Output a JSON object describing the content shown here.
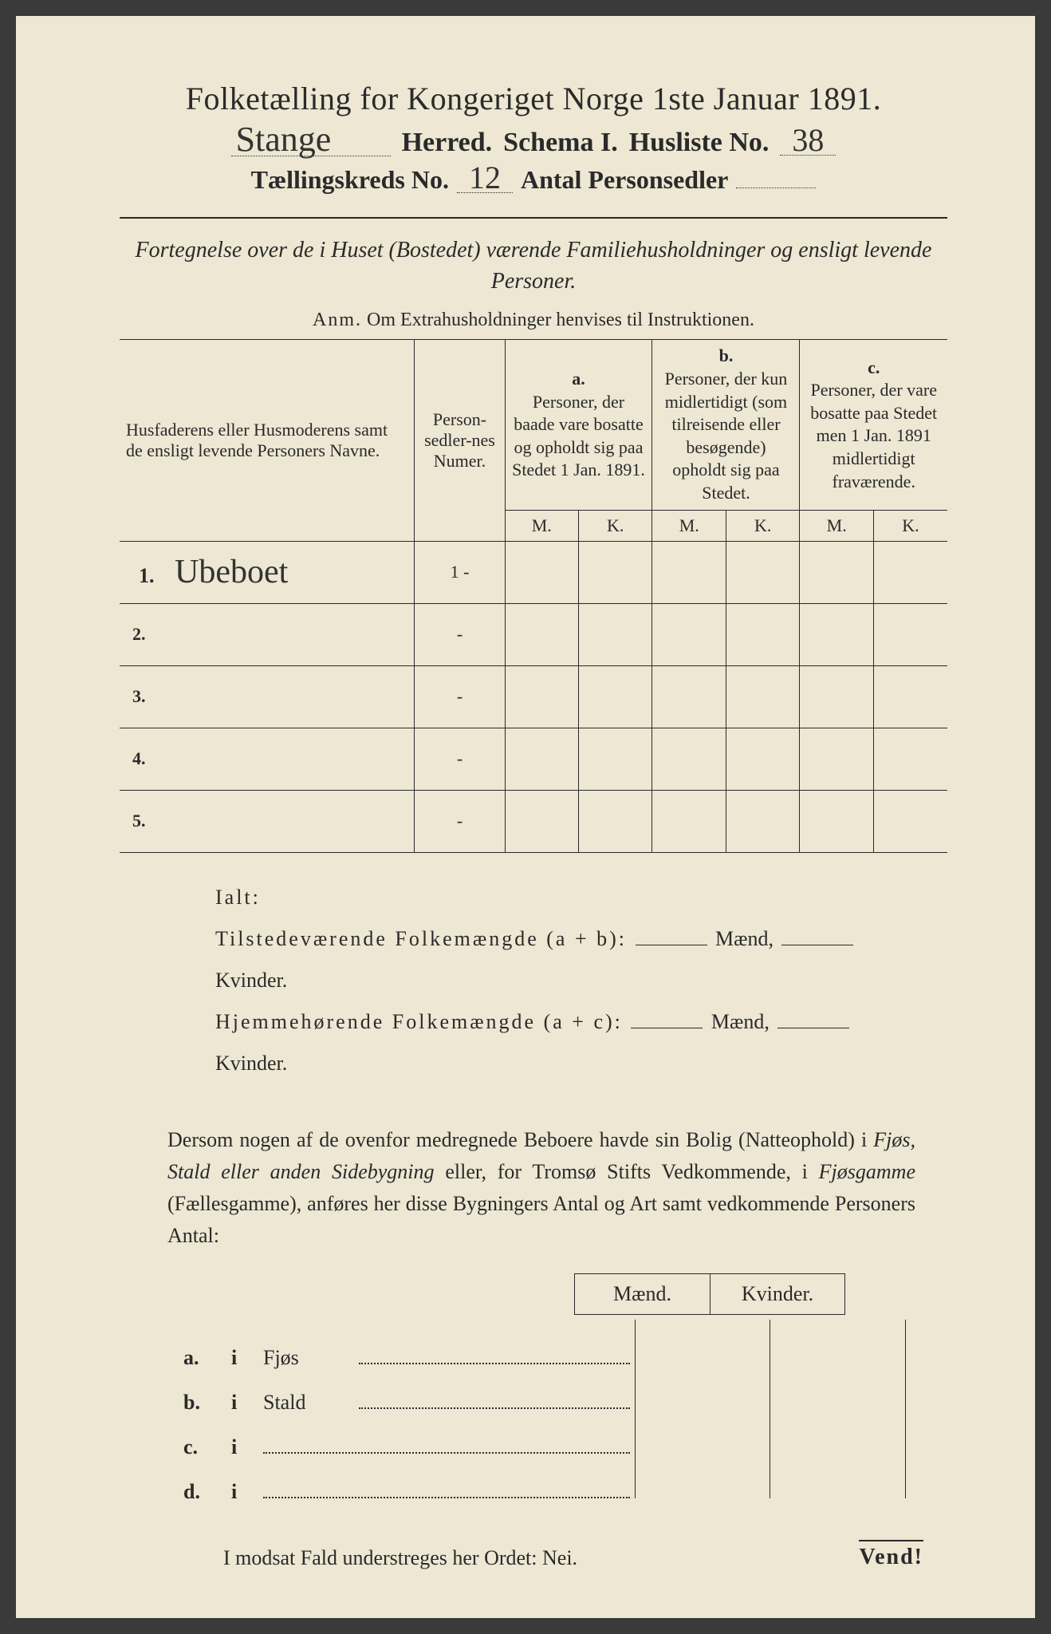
{
  "header": {
    "title": "Folketælling for Kongeriget Norge 1ste Januar 1891.",
    "herred_value": "Stange",
    "herred_label": "Herred.",
    "schema_label": "Schema I.",
    "husliste_label": "Husliste No.",
    "husliste_value": "38",
    "kreds_label": "Tællingskreds No.",
    "kreds_value": "12",
    "antal_label": "Antal Personsedler"
  },
  "subtitle": "Fortegnelse over de i Huset (Bostedet) værende Familiehusholdninger og ensligt levende Personer.",
  "anm_lead": "Anm.",
  "anm_text": "Om Extrahusholdninger henvises til Instruktionen.",
  "table": {
    "col1": "Husfaderens eller Husmoderens samt de ensligt levende Personers Navne.",
    "col2": "Person-sedler-nes Numer.",
    "a_letter": "a.",
    "a_text": "Personer, der baade vare bosatte og opholdt sig paa Stedet 1 Jan. 1891.",
    "b_letter": "b.",
    "b_text": "Personer, der kun midlertidigt (som tilreisende eller besøgende) opholdt sig paa Stedet.",
    "c_letter": "c.",
    "c_text": "Personer, der vare bosatte paa Stedet men 1 Jan. 1891 midlertidigt fraværende.",
    "M": "M.",
    "K": "K.",
    "rows": [
      {
        "n": "1.",
        "name": "Ubeboet",
        "num": "1 -"
      },
      {
        "n": "2.",
        "name": "",
        "num": "-"
      },
      {
        "n": "3.",
        "name": "",
        "num": "-"
      },
      {
        "n": "4.",
        "name": "",
        "num": "-"
      },
      {
        "n": "5.",
        "name": "",
        "num": "-"
      }
    ]
  },
  "ialt": {
    "ialt": "Ialt:",
    "line1a": "Tilstedeværende Folkemængde (a + b):",
    "line2a": "Hjemmehørende Folkemængde (a + c):",
    "maend": "Mænd,",
    "kvinder": "Kvinder."
  },
  "para": {
    "text1": "Dersom nogen af de ovenfor medregnede Beboere havde sin Bolig (Natteophold) i ",
    "it1": "Fjøs, Stald eller anden Sidebygning",
    "text2": " eller, for Tromsø Stifts Vedkommende, i ",
    "it2": "Fjøsgamme",
    "text3": " (Fællesgamme), anføres her disse Bygningers Antal og Art samt vedkommende Personers Antal:"
  },
  "mk": {
    "m": "Mænd.",
    "k": "Kvinder."
  },
  "opts": {
    "a": "a.",
    "b": "b.",
    "c": "c.",
    "d": "d.",
    "i": "i",
    "fjos": "Fjøs",
    "stald": "Stald"
  },
  "nei": "I modsat Fald understreges her Ordet: Nei.",
  "vend": "Vend!"
}
